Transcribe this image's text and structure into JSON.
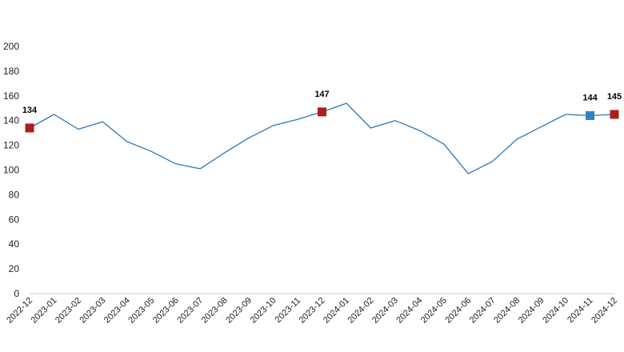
{
  "chart_data": {
    "type": "line",
    "title": "",
    "xlabel": "",
    "ylabel": "",
    "ylim": [
      0,
      200
    ],
    "yticks": [
      0,
      20,
      40,
      60,
      80,
      100,
      120,
      140,
      160,
      180,
      200
    ],
    "grid": false,
    "legend": "none",
    "categories": [
      "2022-12",
      "2023-01",
      "2023-02",
      "2023-03",
      "2023-04",
      "2023-05",
      "2023-06",
      "2023-07",
      "2023-08",
      "2023-09",
      "2023-10",
      "2023-11",
      "2023-12",
      "2024-01",
      "2024-02",
      "2024-03",
      "2024-04",
      "2024-05",
      "2024-06",
      "2024-07",
      "2024-08",
      "2024-09",
      "2024-10",
      "2024-11",
      "2024-12"
    ],
    "series": [
      {
        "values": [
          134,
          145,
          133,
          139,
          123,
          115,
          105,
          101,
          114,
          126,
          136,
          141,
          147,
          154,
          134,
          140,
          132,
          121,
          97,
          107,
          125,
          135,
          145,
          144,
          145
        ]
      }
    ],
    "markers": [
      {
        "category": "2022-12",
        "value": 134,
        "label": "134",
        "color": "#b01c1c"
      },
      {
        "category": "2023-12",
        "value": 147,
        "label": "147",
        "color": "#b01c1c"
      },
      {
        "category": "2024-11",
        "value": 144,
        "label": "144",
        "color": "#2e82c2"
      },
      {
        "category": "2024-12",
        "value": 145,
        "label": "145",
        "color": "#b01c1c"
      }
    ],
    "colors": {
      "line": "#2a78b8",
      "axis": "#c8c8c8"
    }
  }
}
